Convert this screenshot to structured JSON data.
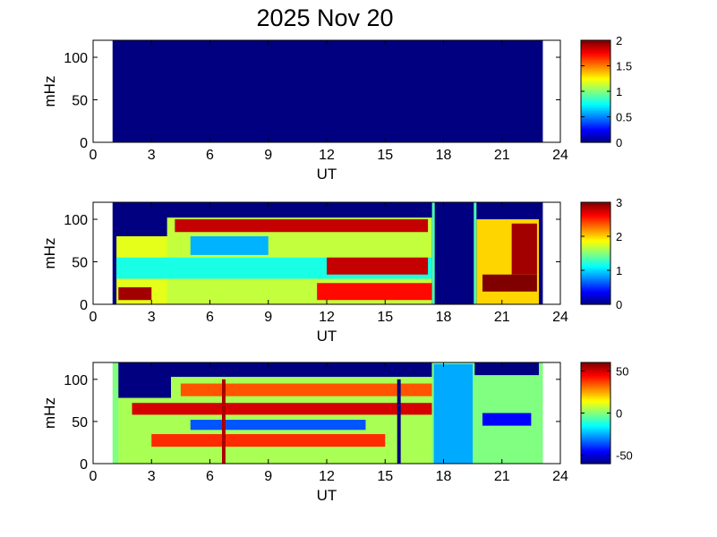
{
  "title": "2025 Nov 20",
  "chart_data": [
    {
      "type": "heatmap",
      "xlabel": "UT",
      "ylabel": "mHz",
      "xlim": [
        0,
        24
      ],
      "ylim": [
        0,
        120
      ],
      "xticks": [
        "0",
        "3",
        "6",
        "9",
        "12",
        "15",
        "18",
        "21",
        "24"
      ],
      "yticks": [
        "0",
        "50",
        "100"
      ],
      "data_range_ut": [
        1.0,
        23.1
      ],
      "colorbar": {
        "min": 0,
        "max": 2,
        "ticks": [
          "0",
          "0.5",
          "1",
          "1.5",
          "2"
        ]
      },
      "levels": [
        {
          "x0": 1.0,
          "x1": 23.1,
          "y0": 0,
          "y1": 120,
          "value": 0
        }
      ]
    },
    {
      "type": "heatmap",
      "xlabel": "UT",
      "ylabel": "mHz",
      "xlim": [
        0,
        24
      ],
      "ylim": [
        0,
        120
      ],
      "xticks": [
        "0",
        "3",
        "6",
        "9",
        "12",
        "15",
        "18",
        "21",
        "24"
      ],
      "yticks": [
        "0",
        "50",
        "100"
      ],
      "data_range_ut": [
        1.0,
        23.1
      ],
      "colorbar": {
        "min": 0,
        "max": 3,
        "ticks": [
          "0",
          "1",
          "2",
          "3"
        ]
      },
      "gaps_ut": [
        [
          17.5,
          19.6
        ]
      ],
      "levels": [
        {
          "x0": 1.0,
          "x1": 23.1,
          "y0": 0,
          "y1": 120,
          "value": 0
        },
        {
          "x0": 1.2,
          "x1": 4.0,
          "y0": 0,
          "y1": 80,
          "value": 1.8
        },
        {
          "x0": 3.8,
          "x1": 17.4,
          "y0": 0,
          "y1": 102,
          "value": 1.7
        },
        {
          "x0": 19.7,
          "x1": 22.9,
          "y0": 0,
          "y1": 100,
          "value": 2.0
        },
        {
          "x0": 1.2,
          "x1": 17.4,
          "y0": 30,
          "y1": 55,
          "value": 1.2
        },
        {
          "x0": 12.0,
          "x1": 17.2,
          "y0": 35,
          "y1": 55,
          "value": 2.8
        },
        {
          "x0": 4.2,
          "x1": 17.2,
          "y0": 85,
          "y1": 100,
          "value": 2.8
        },
        {
          "x0": 1.3,
          "x1": 3.0,
          "y0": 5,
          "y1": 20,
          "value": 2.9
        },
        {
          "x0": 11.5,
          "x1": 17.4,
          "y0": 5,
          "y1": 25,
          "value": 2.6
        },
        {
          "x0": 20.0,
          "x1": 22.8,
          "y0": 15,
          "y1": 35,
          "value": 3.0
        },
        {
          "x0": 21.5,
          "x1": 22.8,
          "y0": 35,
          "y1": 95,
          "value": 2.9
        },
        {
          "x0": 5.0,
          "x1": 9.0,
          "y0": 58,
          "y1": 80,
          "value": 0.9
        }
      ]
    },
    {
      "type": "heatmap",
      "xlabel": "UT",
      "ylabel": "mHz",
      "xlim": [
        0,
        24
      ],
      "ylim": [
        0,
        120
      ],
      "xticks": [
        "0",
        "3",
        "6",
        "9",
        "12",
        "15",
        "18",
        "21",
        "24"
      ],
      "yticks": [
        "0",
        "50",
        "100"
      ],
      "data_range_ut": [
        1.0,
        23.1
      ],
      "colorbar": {
        "min": -60,
        "max": 60,
        "ticks": [
          "50",
          "0",
          "-50"
        ],
        "tick_values": [
          50,
          0,
          -50
        ]
      },
      "levels": [
        {
          "x0": 1.0,
          "x1": 23.1,
          "y0": 0,
          "y1": 120,
          "value": 0
        },
        {
          "x0": 1.3,
          "x1": 17.4,
          "y0": 0,
          "y1": 102,
          "value": 5
        },
        {
          "x0": 1.3,
          "x1": 4.0,
          "y0": 78,
          "y1": 120,
          "value": -60
        },
        {
          "x0": 4.0,
          "x1": 17.4,
          "y0": 103,
          "y1": 120,
          "value": -60
        },
        {
          "x0": 19.6,
          "x1": 22.9,
          "y0": 105,
          "y1": 120,
          "value": -60
        },
        {
          "x0": 2.0,
          "x1": 17.4,
          "y0": 58,
          "y1": 72,
          "value": 50
        },
        {
          "x0": 4.5,
          "x1": 17.4,
          "y0": 80,
          "y1": 95,
          "value": 35
        },
        {
          "x0": 3.0,
          "x1": 15.0,
          "y0": 20,
          "y1": 35,
          "value": 40
        },
        {
          "x0": 5.0,
          "x1": 14.0,
          "y0": 40,
          "y1": 52,
          "value": -35
        },
        {
          "x0": 17.5,
          "x1": 19.5,
          "y0": 0,
          "y1": 118,
          "value": -25
        },
        {
          "x0": 20.0,
          "x1": 22.5,
          "y0": 45,
          "y1": 60,
          "value": -45
        },
        {
          "x0": 6.62,
          "x1": 6.8,
          "y0": 0,
          "y1": 100,
          "value": 55
        },
        {
          "x0": 15.62,
          "x1": 15.8,
          "y0": 0,
          "y1": 100,
          "value": -60
        },
        {
          "x0": 22.9,
          "x1": 23.1,
          "y0": 0,
          "y1": 120,
          "value": 0
        }
      ]
    }
  ]
}
